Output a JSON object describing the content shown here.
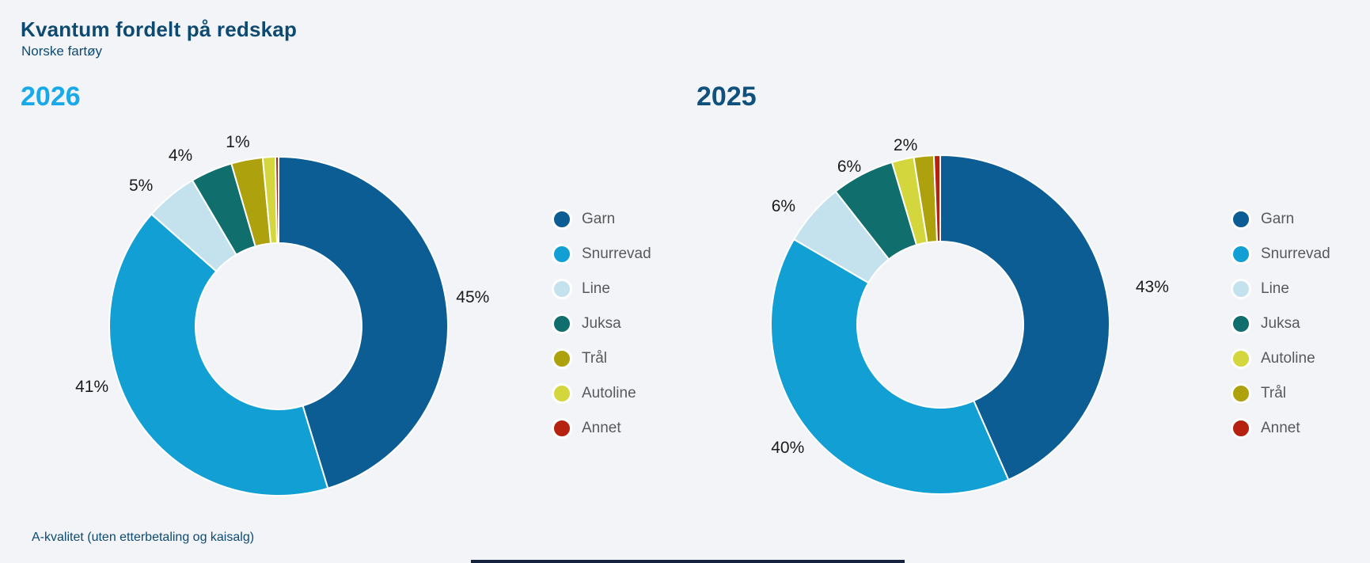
{
  "page": {
    "title": "Kvantum fordelt på redskap",
    "subtitle": "Norske fartøy",
    "footnote": "A-kvalitet (uten etterbetaling og kaisalg)"
  },
  "colors": {
    "background": "#f3f4f8",
    "title_text": "#0d4a72",
    "legend_text": "#58595a",
    "percent_label_text": "#1b1b1b",
    "slice_gap_stroke": "#ffffff",
    "bottom_bar": "#15233f"
  },
  "chart_data": [
    {
      "type": "pie",
      "subtype": "donut",
      "year": "2026",
      "year_color": "#1aa9e8",
      "legend_position": "right",
      "slices": [
        {
          "name": "Garn",
          "value": 45.3,
          "label": "45%",
          "color": "#0b5d94"
        },
        {
          "name": "Snurrevad",
          "value": 41.2,
          "label": "41%",
          "color": "#119fd4",
          "label_angle": 252
        },
        {
          "name": "Line",
          "value": 5,
          "label": "5%",
          "color": "#c4e2ed",
          "label_angle": 315.5
        },
        {
          "name": "Juksa",
          "value": 4,
          "label": "4%",
          "color": "#106e6c",
          "label_angle": 330
        },
        {
          "name": "Trål",
          "value": 3,
          "label": null,
          "color": "#aea10e"
        },
        {
          "name": "Autoline",
          "value": 1.2,
          "label": "1%",
          "color": "#d4d63d",
          "label_angle": 347.5,
          "label_r": 238
        },
        {
          "name": "Annet",
          "value": 0.3,
          "label": null,
          "color": "#b5220f"
        }
      ]
    },
    {
      "type": "pie",
      "subtype": "donut",
      "year": "2025",
      "year_color": "#10507c",
      "legend_position": "right",
      "slices": [
        {
          "name": "Garn",
          "value": 43.4,
          "label": "43%",
          "color": "#0b5d94",
          "label_angle": 80,
          "label_r": 272
        },
        {
          "name": "Snurrevad",
          "value": 40,
          "label": "40%",
          "color": "#119fd4",
          "label_angle": 231
        },
        {
          "name": "Line",
          "value": 6,
          "label": "6%",
          "color": "#c4e2ed",
          "label_angle": 307
        },
        {
          "name": "Juksa",
          "value": 6,
          "label": "6%",
          "color": "#106e6c",
          "label_angle": 330,
          "label_r": 230
        },
        {
          "name": "Autoline",
          "value": 2.1,
          "label": "2%",
          "color": "#d4d63d",
          "label_angle": 349,
          "label_r": 230
        },
        {
          "name": "Trål",
          "value": 1.9,
          "label": null,
          "color": "#aea10e"
        },
        {
          "name": "Annet",
          "value": 0.6,
          "label": null,
          "color": "#b5220f"
        }
      ]
    }
  ]
}
